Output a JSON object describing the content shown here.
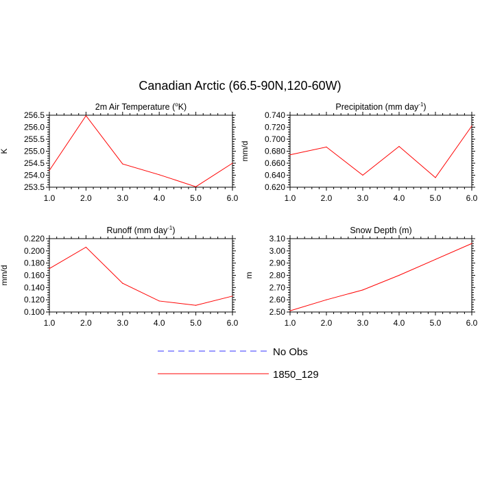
{
  "title": "Canadian Arctic (66.5-90N,120-60W)",
  "legend": [
    {
      "label": "No Obs",
      "color": "#3333ff",
      "dash": true
    },
    {
      "label": "1850_129",
      "color": "#ff0000",
      "dash": false
    }
  ],
  "chart_data": [
    {
      "type": "line",
      "title_parts": [
        "2m Air Temperature (",
        "o",
        "K)"
      ],
      "ylabel": "K",
      "x": [
        1.0,
        2.0,
        3.0,
        4.0,
        5.0,
        6.0
      ],
      "xticks": [
        "1.0",
        "2.0",
        "3.0",
        "4.0",
        "5.0",
        "6.0"
      ],
      "xlim": [
        1.0,
        6.0
      ],
      "ylim": [
        253.5,
        256.5
      ],
      "yticks": [
        253.5,
        254.0,
        254.5,
        255.0,
        255.5,
        256.0,
        256.5
      ],
      "ytick_labels": [
        "253.5",
        "254.0",
        "254.5",
        "255.0",
        "255.5",
        "256.0",
        "256.5"
      ],
      "series": [
        {
          "name": "1850_129",
          "color": "#ff0000",
          "values": [
            254.2,
            256.48,
            254.47,
            254.02,
            253.52,
            254.5
          ]
        }
      ]
    },
    {
      "type": "line",
      "title_parts": [
        "Precipitation (mm day",
        "-1",
        ")"
      ],
      "ylabel": "mm/d",
      "x": [
        1.0,
        2.0,
        3.0,
        4.0,
        5.0,
        6.0
      ],
      "xticks": [
        "1.0",
        "2.0",
        "3.0",
        "4.0",
        "5.0",
        "6.0"
      ],
      "xlim": [
        1.0,
        6.0
      ],
      "ylim": [
        0.62,
        0.74
      ],
      "yticks": [
        0.62,
        0.64,
        0.66,
        0.68,
        0.7,
        0.72,
        0.74
      ],
      "ytick_labels": [
        "0.620",
        "0.640",
        "0.660",
        "0.680",
        "0.700",
        "0.720",
        "0.740"
      ],
      "series": [
        {
          "name": "1850_129",
          "color": "#ff0000",
          "values": [
            0.674,
            0.687,
            0.64,
            0.688,
            0.636,
            0.722
          ]
        }
      ]
    },
    {
      "type": "line",
      "title_parts": [
        "Runoff (mm day",
        "-1",
        ")"
      ],
      "ylabel": "mm/d",
      "x": [
        1.0,
        2.0,
        3.0,
        4.0,
        5.0,
        6.0
      ],
      "xticks": [
        "1.0",
        "2.0",
        "3.0",
        "4.0",
        "5.0",
        "6.0"
      ],
      "xlim": [
        1.0,
        6.0
      ],
      "ylim": [
        0.1,
        0.22
      ],
      "yticks": [
        0.1,
        0.12,
        0.14,
        0.16,
        0.18,
        0.2,
        0.22
      ],
      "ytick_labels": [
        "0.100",
        "0.120",
        "0.140",
        "0.160",
        "0.180",
        "0.200",
        "0.220"
      ],
      "series": [
        {
          "name": "1850_129",
          "color": "#ff0000",
          "values": [
            0.171,
            0.206,
            0.147,
            0.118,
            0.111,
            0.126
          ]
        }
      ]
    },
    {
      "type": "line",
      "title_parts": [
        "Snow Depth (m)"
      ],
      "ylabel": "m",
      "x": [
        1.0,
        2.0,
        3.0,
        4.0,
        5.0,
        6.0
      ],
      "xticks": [
        "1.0",
        "2.0",
        "3.0",
        "4.0",
        "5.0",
        "6.0"
      ],
      "xlim": [
        1.0,
        6.0
      ],
      "ylim": [
        2.5,
        3.1
      ],
      "yticks": [
        2.5,
        2.6,
        2.7,
        2.8,
        2.9,
        3.0,
        3.1
      ],
      "ytick_labels": [
        "2.50",
        "2.60",
        "2.70",
        "2.80",
        "2.90",
        "3.00",
        "3.10"
      ],
      "series": [
        {
          "name": "1850_129",
          "color": "#ff0000",
          "values": [
            2.51,
            2.6,
            2.68,
            2.8,
            2.93,
            3.06
          ]
        }
      ]
    }
  ]
}
